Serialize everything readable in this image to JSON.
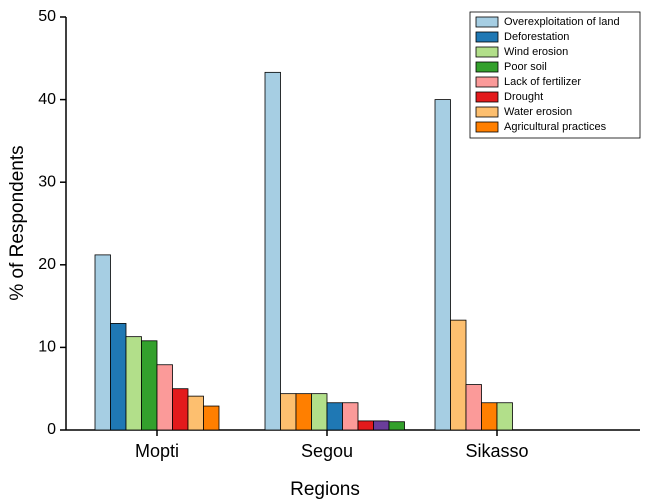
{
  "chart_data": {
    "type": "bar",
    "xlabel": "Regions",
    "ylabel": "% of Respondents",
    "categories": [
      "Mopti",
      "Segou",
      "Sikasso"
    ],
    "groups": [
      [
        {
          "color": "#a6cee3",
          "value": 21.2
        },
        {
          "color": "#1f78b4",
          "value": 12.9
        },
        {
          "color": "#b2df8a",
          "value": 11.3
        },
        {
          "color": "#33a02c",
          "value": 10.8
        },
        {
          "color": "#fb9a99",
          "value": 7.9
        },
        {
          "color": "#e31a1c",
          "value": 5.0
        },
        {
          "color": "#fdbf6f",
          "value": 4.1
        },
        {
          "color": "#ff7f00",
          "value": 2.9
        }
      ],
      [
        {
          "color": "#a6cee3",
          "value": 43.3
        },
        {
          "color": "#fdbf6f",
          "value": 4.4
        },
        {
          "color": "#ff7f00",
          "value": 4.4
        },
        {
          "color": "#b2df8a",
          "value": 4.4
        },
        {
          "color": "#1f78b4",
          "value": 3.3
        },
        {
          "color": "#fb9a99",
          "value": 3.3
        },
        {
          "color": "#e31a1c",
          "value": 1.1
        },
        {
          "color": "#6a3d9a",
          "value": 1.1
        },
        {
          "color": "#33a02c",
          "value": 1.0
        }
      ],
      [
        {
          "color": "#a6cee3",
          "value": 40.0
        },
        {
          "color": "#fdbf6f",
          "value": 13.3
        },
        {
          "color": "#fb9a99",
          "value": 5.5
        },
        {
          "color": "#ff7f00",
          "value": 3.3
        },
        {
          "color": "#b2df8a",
          "value": 3.3
        }
      ]
    ],
    "legend": [
      {
        "name": "Overexploitation of land",
        "color": "#a6cee3"
      },
      {
        "name": "Deforestation",
        "color": "#1f78b4"
      },
      {
        "name": "Wind erosion",
        "color": "#b2df8a"
      },
      {
        "name": "Poor soil",
        "color": "#33a02c"
      },
      {
        "name": "Lack of fertilizer",
        "color": "#fb9a99"
      },
      {
        "name": "Drought",
        "color": "#e31a1c"
      },
      {
        "name": "Water erosion",
        "color": "#fdbf6f"
      },
      {
        "name": "Agricultural practices",
        "color": "#ff7f00"
      }
    ],
    "legend_position": "upper right",
    "ylim": [
      0,
      50
    ],
    "yticks": [
      0,
      10,
      20,
      30,
      40,
      50
    ],
    "grid": false
  }
}
